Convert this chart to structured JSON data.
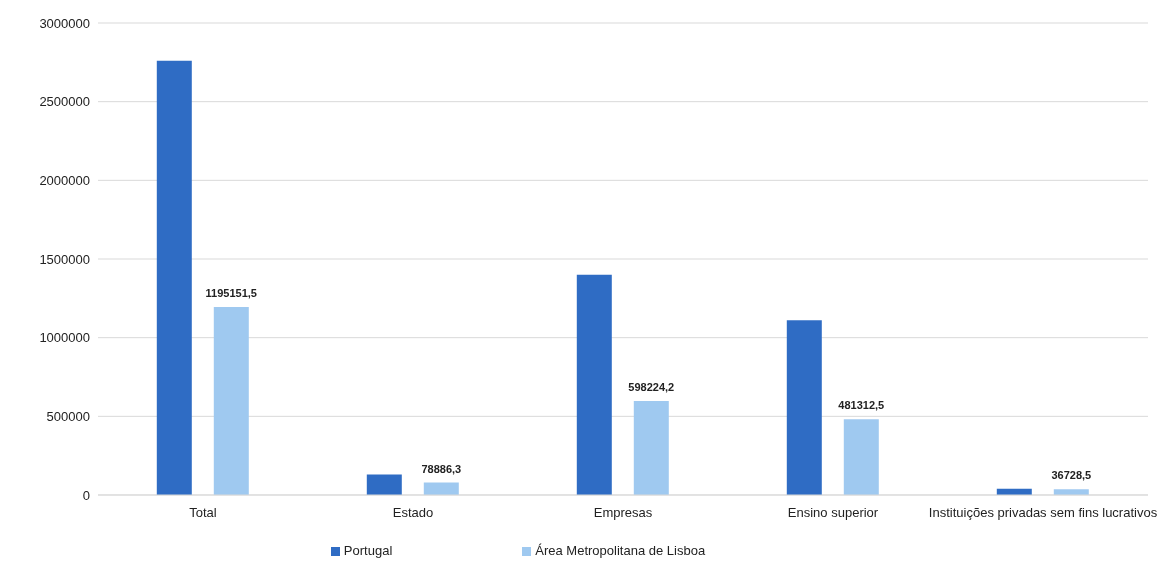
{
  "chart_data": {
    "type": "bar",
    "categories": [
      "Total",
      "Estado",
      "Empresas",
      "Ensino superior",
      "Instituições privadas sem fins lucrativos"
    ],
    "series": [
      {
        "name": "Portugal",
        "color": "#2f6cc4",
        "values": [
          2760000,
          130000,
          1400000,
          1110000,
          40000
        ]
      },
      {
        "name": "Área Metropolitana de Lisboa",
        "color": "#9fc9f0",
        "values": [
          1195151.5,
          78886.3,
          598224.2,
          481312.5,
          36728.5
        ],
        "value_labels": [
          "1195151,5",
          "78886,3",
          "598224,2",
          "481312,5",
          "36728,5"
        ]
      }
    ],
    "ylim": [
      0,
      3000000
    ],
    "yticks": [
      0,
      500000,
      1000000,
      1500000,
      2000000,
      2500000,
      3000000
    ],
    "grid": "y",
    "legend": "bottom"
  }
}
